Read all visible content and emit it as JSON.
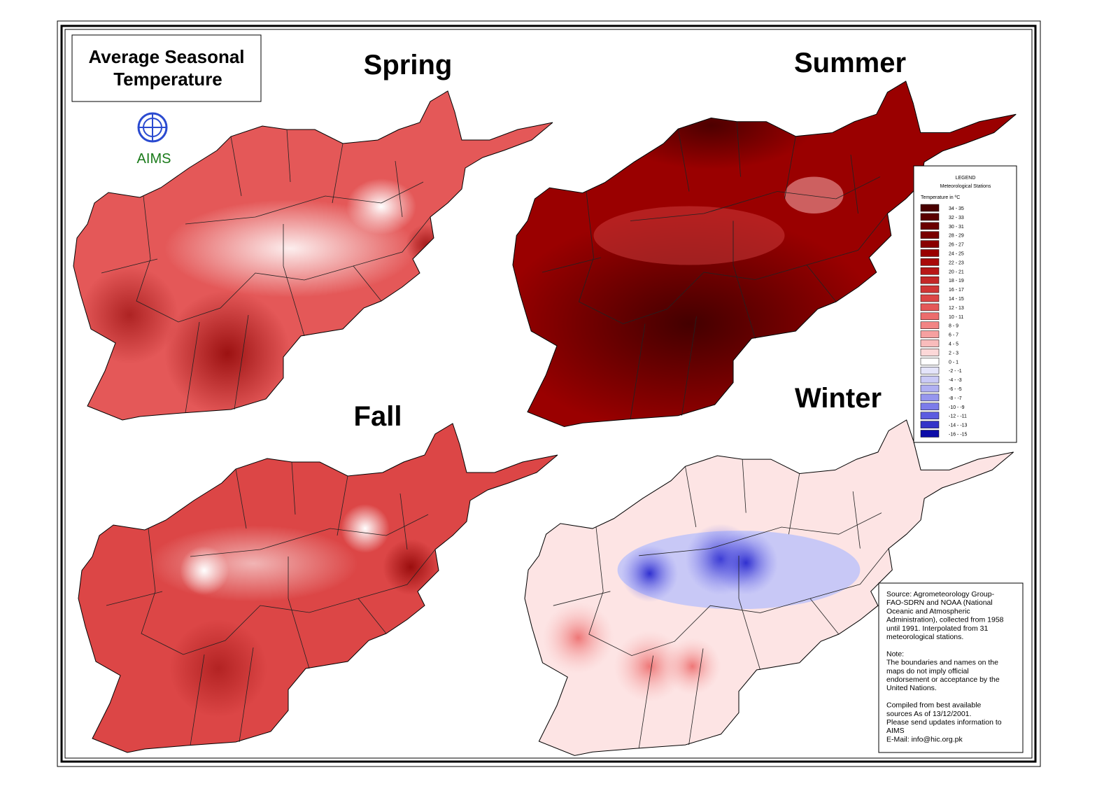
{
  "header": {
    "title": [
      "Average Seasonal",
      "Temperature"
    ],
    "org": "AIMS"
  },
  "maps": [
    {
      "season": "Spring"
    },
    {
      "season": "Summer"
    },
    {
      "season": "Fall"
    },
    {
      "season": "Winter"
    }
  ],
  "legend": {
    "title": "LEGEND",
    "subtitle": "Meteorological Stations",
    "unit": "Temperature in ºC",
    "items": [
      {
        "label": "34 - 35",
        "color": "#4a0000"
      },
      {
        "label": "32 - 33",
        "color": "#5a0000"
      },
      {
        "label": "30 - 31",
        "color": "#6a0000"
      },
      {
        "label": "28 - 29",
        "color": "#7a0000"
      },
      {
        "label": "26 - 27",
        "color": "#8a0000"
      },
      {
        "label": "24 - 25",
        "color": "#9a0000"
      },
      {
        "label": "22 - 23",
        "color": "#aa0a0a"
      },
      {
        "label": "20 - 21",
        "color": "#b81818"
      },
      {
        "label": "18 - 19",
        "color": "#c42828"
      },
      {
        "label": "16 - 17",
        "color": "#d03636"
      },
      {
        "label": "14 - 15",
        "color": "#dc4646"
      },
      {
        "label": "12 - 13",
        "color": "#e45858"
      },
      {
        "label": "10 - 11",
        "color": "#ec6c6c"
      },
      {
        "label": "8 - 9",
        "color": "#f28484"
      },
      {
        "label": "6 - 7",
        "color": "#f6a0a0"
      },
      {
        "label": "4 - 5",
        "color": "#f9bcbc"
      },
      {
        "label": "2 - 3",
        "color": "#fcd8d8"
      },
      {
        "label": "0 - 1",
        "color": "#ffffff"
      },
      {
        "label": "-2 - -1",
        "color": "#e4e4fa"
      },
      {
        "label": "-4 - -3",
        "color": "#cacaf6"
      },
      {
        "label": "-6 - -5",
        "color": "#b0b0f2"
      },
      {
        "label": "-8 - -7",
        "color": "#9696ee"
      },
      {
        "label": "-10 - -9",
        "color": "#7c7cea"
      },
      {
        "label": "-12 - -11",
        "color": "#5c5ce0"
      },
      {
        "label": "-14 - -13",
        "color": "#3434c8"
      },
      {
        "label": "-16 - -15",
        "color": "#0c0ca8"
      }
    ]
  },
  "note": {
    "source": [
      "Source: Agrometeorology Group-",
      "FAO-SDRN and NOAA (National",
      "Oceanic and Atmospheric",
      "Administration), collected from 1958",
      "until 1991.  Interpolated from 31",
      "meteorological stations."
    ],
    "disclaimer": [
      "Note:",
      "The boundaries and names on the",
      "maps do not imply official",
      "endorsement or acceptance by the",
      "United Nations."
    ],
    "compiled": [
      "Compiled from best available",
      "sources As of 13/12/2001.",
      "Please send updates information to",
      "AIMS",
      "E-Mail: info@hic.org.pk"
    ]
  }
}
